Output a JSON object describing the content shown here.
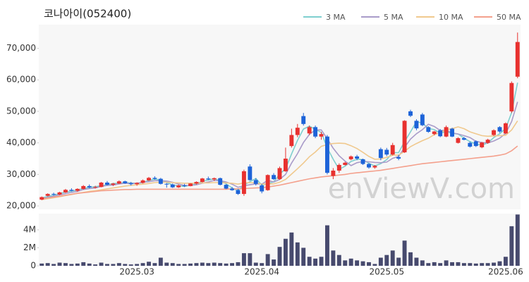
{
  "chart_data": {
    "type": "candlestick",
    "title": "코나아이(052400)",
    "watermark": "enViewV.com",
    "up_color": "#e8312f",
    "down_color": "#1d63d8",
    "volume_color": "#474a6e",
    "categories": [
      null,
      null,
      null,
      null,
      null,
      null,
      null,
      null,
      null,
      null,
      null,
      null,
      null,
      null,
      null,
      null,
      "2025.03",
      null,
      null,
      null,
      null,
      null,
      null,
      null,
      null,
      null,
      null,
      null,
      null,
      null,
      null,
      null,
      null,
      null,
      null,
      null,
      null,
      "2025.04",
      null,
      null,
      null,
      null,
      null,
      null,
      null,
      null,
      null,
      null,
      null,
      null,
      null,
      null,
      null,
      null,
      null,
      null,
      null,
      null,
      "2025.05",
      null,
      null,
      null,
      null,
      null,
      null,
      null,
      null,
      null,
      null,
      null,
      null,
      null,
      null,
      null,
      null,
      null,
      null,
      null,
      "2025.06",
      null,
      null
    ],
    "open": [
      22000,
      23200,
      23800,
      23600,
      24300,
      25100,
      24800,
      25400,
      26300,
      25900,
      26000,
      27400,
      26700,
      27100,
      27800,
      27200,
      26900,
      27300,
      28100,
      28900,
      28600,
      27000,
      26800,
      25900,
      26500,
      26300,
      27100,
      27600,
      28700,
      28400,
      28800,
      26700,
      25500,
      25000,
      23800,
      32500,
      28200,
      26500,
      25000,
      29800,
      28500,
      31000,
      39000,
      42500,
      48500,
      43000,
      45000,
      42000,
      42000,
      29500,
      31200,
      33000,
      34800,
      35700,
      34800,
      33300,
      32200,
      38000,
      37800,
      36300,
      35500,
      37000,
      50000,
      47000,
      49000,
      45000,
      42800,
      44000,
      42000,
      44500,
      40000,
      41500,
      40000,
      40500,
      38600,
      40000,
      42500,
      45000,
      43000,
      50000,
      61000
    ],
    "high": [
      23000,
      24000,
      24200,
      24500,
      25400,
      25600,
      25600,
      26600,
      26800,
      26400,
      27600,
      27900,
      27300,
      28100,
      28000,
      27600,
      27500,
      28400,
      29200,
      29400,
      28900,
      27300,
      27100,
      26800,
      27000,
      27200,
      27800,
      28900,
      29300,
      29000,
      29000,
      26900,
      26000,
      25400,
      31500,
      33200,
      28800,
      27000,
      30000,
      30400,
      32500,
      38500,
      44500,
      46000,
      49500,
      45500,
      45500,
      43500,
      42500,
      32000,
      33500,
      34000,
      36000,
      36200,
      35000,
      33600,
      33000,
      38500,
      38400,
      40000,
      36200,
      47200,
      50500,
      47500,
      49500,
      45300,
      43800,
      44400,
      45500,
      44800,
      41800,
      41900,
      40400,
      40800,
      40300,
      41300,
      44300,
      45300,
      46500,
      59500,
      75000
    ],
    "low": [
      21800,
      23000,
      23300,
      23400,
      24100,
      24600,
      24500,
      25200,
      25600,
      25500,
      25900,
      26500,
      26300,
      26900,
      27000,
      26500,
      26400,
      27100,
      27900,
      28300,
      26800,
      25800,
      25700,
      25700,
      26000,
      26200,
      26800,
      27400,
      28200,
      27900,
      26500,
      25300,
      24800,
      23500,
      23200,
      28000,
      26500,
      24000,
      24800,
      28200,
      28300,
      30800,
      38500,
      41800,
      45500,
      42500,
      41500,
      41000,
      30000,
      28500,
      30500,
      32800,
      34500,
      34500,
      33000,
      31800,
      31800,
      34500,
      35800,
      36000,
      34500,
      36800,
      48200,
      44000,
      45300,
      43200,
      42400,
      41800,
      41800,
      41800,
      39800,
      40800,
      38500,
      38700,
      38300,
      39700,
      42200,
      43200,
      42800,
      49500,
      60500
    ],
    "close": [
      22800,
      23800,
      23600,
      24300,
      25100,
      24800,
      25400,
      26300,
      25900,
      26000,
      27400,
      26700,
      27100,
      27800,
      27200,
      26900,
      27300,
      28100,
      28900,
      28600,
      27000,
      26800,
      25900,
      26500,
      26300,
      27100,
      27600,
      28700,
      28400,
      28800,
      26700,
      25500,
      25000,
      23800,
      31000,
      28200,
      27000,
      24600,
      29800,
      28500,
      32000,
      35000,
      42500,
      44800,
      46000,
      45000,
      42000,
      42800,
      30500,
      31200,
      33000,
      33700,
      35700,
      35000,
      33300,
      32200,
      32700,
      35200,
      36300,
      39300,
      35000,
      47000,
      48600,
      44600,
      45600,
      43500,
      43600,
      42100,
      45000,
      42000,
      41500,
      41000,
      38800,
      39000,
      40100,
      41000,
      44000,
      43600,
      46200,
      59000,
      72000
    ],
    "volume": [
      250000,
      300000,
      200000,
      350000,
      300000,
      200000,
      250000,
      400000,
      250000,
      150000,
      350000,
      200000,
      200000,
      300000,
      200000,
      150000,
      200000,
      300000,
      450000,
      300000,
      900000,
      350000,
      300000,
      200000,
      200000,
      250000,
      300000,
      350000,
      300000,
      350000,
      300000,
      250000,
      300000,
      400000,
      1400000,
      1400000,
      350000,
      300000,
      1300000,
      700000,
      2100000,
      3000000,
      3700000,
      2600000,
      2000000,
      1000000,
      800000,
      1000000,
      4500000,
      1700000,
      1200000,
      600000,
      800000,
      600000,
      500000,
      400000,
      200000,
      900000,
      1200000,
      1700000,
      900000,
      2800000,
      1500000,
      900000,
      600000,
      300000,
      400000,
      300000,
      600000,
      400000,
      400000,
      300000,
      300000,
      250000,
      300000,
      300000,
      350000,
      500000,
      1000000,
      4400000,
      5700000
    ],
    "series": [
      {
        "name": "3 MA",
        "color": "#7ecfcf",
        "values": [
          22500,
          23000,
          23400,
          23900,
          24400,
          24700,
          25100,
          25500,
          25900,
          26100,
          26400,
          26700,
          27100,
          27200,
          27400,
          27300,
          27100,
          27400,
          28100,
          28500,
          28200,
          27500,
          26600,
          26400,
          26200,
          26600,
          27000,
          27800,
          28200,
          28600,
          28000,
          27000,
          25700,
          24800,
          26600,
          27700,
          28700,
          26600,
          27100,
          27600,
          30100,
          31800,
          36500,
          40800,
          44400,
          45300,
          44300,
          43300,
          38400,
          34800,
          31600,
          32600,
          34100,
          34800,
          34700,
          33500,
          32700,
          33400,
          34700,
          36900,
          36900,
          40400,
          43500,
          46700,
          46300,
          44600,
          44200,
          43100,
          43600,
          43000,
          42800,
          41500,
          40400,
          39600,
          39300,
          40000,
          41700,
          42900,
          44600,
          49600,
          59100
        ]
      },
      {
        "name": "5 MA",
        "color": "#a99bc9",
        "values": [
          22300,
          22700,
          23100,
          23500,
          23900,
          24300,
          24600,
          25200,
          25500,
          25700,
          26200,
          26500,
          26600,
          27000,
          27200,
          27100,
          27200,
          27500,
          27700,
          28000,
          28000,
          27900,
          27500,
          26900,
          26500,
          26500,
          26700,
          27200,
          27600,
          28100,
          28000,
          27600,
          26900,
          25900,
          26400,
          26700,
          27000,
          26900,
          28100,
          27600,
          28400,
          30000,
          33600,
          36600,
          40100,
          42700,
          44100,
          44100,
          41300,
          38300,
          35900,
          34200,
          32800,
          33700,
          34100,
          34000,
          33800,
          33700,
          33900,
          35100,
          35700,
          38600,
          41200,
          42900,
          44200,
          45900,
          45200,
          43900,
          44000,
          43200,
          42800,
          42300,
          41700,
          40500,
          40100,
          40000,
          40600,
          41500,
          43000,
          46800,
          53000
        ]
      },
      {
        "name": "10 MA",
        "color": "#f0c98e",
        "values": [
          22000,
          22300,
          22600,
          22900,
          23300,
          23600,
          24000,
          24300,
          24600,
          24800,
          25100,
          25400,
          25700,
          26000,
          26300,
          26500,
          26700,
          26900,
          27100,
          27400,
          27500,
          27500,
          27400,
          27300,
          27200,
          27200,
          27200,
          27300,
          27300,
          27400,
          27400,
          27300,
          27200,
          26900,
          27300,
          27400,
          27300,
          26900,
          27000,
          27000,
          27500,
          28400,
          30100,
          31800,
          33600,
          35600,
          37100,
          38900,
          39500,
          39800,
          39900,
          39800,
          39100,
          38200,
          37000,
          35700,
          34800,
          34900,
          35400,
          36100,
          36100,
          37300,
          38800,
          39800,
          40700,
          41500,
          42600,
          43300,
          44200,
          44500,
          45100,
          44500,
          43500,
          42900,
          42300,
          42100,
          42200,
          42300,
          42400,
          44100,
          47000
        ]
      },
      {
        "name": "50 MA",
        "color": "#f4a08c",
        "values": [
          22200,
          22500,
          22800,
          23100,
          23400,
          23700,
          24000,
          24200,
          24400,
          24600,
          24800,
          24900,
          25000,
          25100,
          25200,
          25200,
          25300,
          25300,
          25300,
          25300,
          25300,
          25300,
          25300,
          25300,
          25300,
          25300,
          25300,
          25300,
          25300,
          25300,
          25300,
          25300,
          25400,
          25400,
          25500,
          25600,
          25700,
          25800,
          26000,
          26300,
          26600,
          27000,
          27400,
          27800,
          28200,
          28600,
          28900,
          29200,
          29400,
          29600,
          29800,
          30000,
          30300,
          30500,
          30700,
          30900,
          31100,
          31300,
          31600,
          31900,
          32200,
          32500,
          32800,
          33100,
          33400,
          33600,
          33800,
          34000,
          34200,
          34400,
          34600,
          34800,
          35000,
          35200,
          35400,
          35600,
          35800,
          36100,
          36500,
          37500,
          39000
        ]
      }
    ],
    "ylim": [
      18900,
      77500
    ],
    "yticks": [
      {
        "value": 20000,
        "label": "20,000"
      },
      {
        "value": 30000,
        "label": "30,000"
      },
      {
        "value": 40000,
        "label": "40,000"
      },
      {
        "value": 50000,
        "label": "50,000"
      },
      {
        "value": 60000,
        "label": "60,000"
      },
      {
        "value": 70000,
        "label": "70,000"
      }
    ],
    "volume_ylim": [
      0,
      5800000
    ],
    "volume_yticks": [
      0,
      {
        "value": 2000000,
        "label": "2M"
      },
      {
        "value": 4000000,
        "label": "4M"
      }
    ],
    "grid": false
  }
}
